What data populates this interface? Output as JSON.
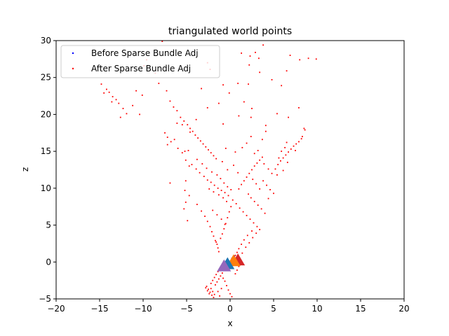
{
  "chart_data": {
    "type": "scatter",
    "title": "triangulated world points",
    "xlabel": "x",
    "ylabel": "z",
    "xlim": [
      -20,
      20
    ],
    "ylim": [
      -5,
      30
    ],
    "xticks": [
      -20,
      -15,
      -10,
      -5,
      0,
      5,
      10,
      15,
      20
    ],
    "yticks": [
      -5,
      0,
      5,
      10,
      15,
      20,
      25,
      30
    ],
    "xtick_labels": [
      "−20",
      "−15",
      "−10",
      "−5",
      "0",
      "5",
      "10",
      "15",
      "20"
    ],
    "ytick_labels": [
      "−5",
      "0",
      "5",
      "10",
      "15",
      "20",
      "25",
      "30"
    ],
    "grid": false,
    "legend": {
      "placement": "top-left",
      "entries": [
        {
          "label": "Before Sparse Bundle Adj",
          "color": "#0000ff"
        },
        {
          "label": "After Sparse Bundle Adj",
          "color": "#ff0000"
        }
      ]
    },
    "series": [
      {
        "name": "Before Sparse Bundle Adj",
        "color": "#0000ff",
        "points": [
          [
            0.2,
            0.5
          ],
          [
            0.5,
            0.8
          ],
          [
            -0.3,
            0.2
          ]
        ]
      },
      {
        "name": "After Sparse Bundle Adj",
        "color": "#ff0000",
        "points": [
          [
            -14.8,
            24.1
          ],
          [
            -14.2,
            23.4
          ],
          [
            -13.9,
            23.0
          ],
          [
            -13.5,
            22.4
          ],
          [
            -13.1,
            22.0
          ],
          [
            -12.8,
            21.5
          ],
          [
            -14.5,
            22.9
          ],
          [
            -13.6,
            21.7
          ],
          [
            -12.3,
            20.8
          ],
          [
            -11.9,
            20.1
          ],
          [
            -10.4,
            20.0
          ],
          [
            -12.6,
            19.6
          ],
          [
            -11.2,
            21.2
          ],
          [
            -10.8,
            23.2
          ],
          [
            -10.1,
            22.6
          ],
          [
            -9.6,
            27.4
          ],
          [
            -9.9,
            26.6
          ],
          [
            -8.6,
            25.6
          ],
          [
            -8.2,
            24.2
          ],
          [
            -7.8,
            29.9
          ],
          [
            -7.3,
            23.2
          ],
          [
            -6.9,
            21.8
          ],
          [
            -6.5,
            21.0
          ],
          [
            -6.1,
            20.5
          ],
          [
            -5.7,
            19.6
          ],
          [
            -5.3,
            19.1
          ],
          [
            -4.9,
            18.6
          ],
          [
            -4.6,
            18.1
          ],
          [
            -4.3,
            17.7
          ],
          [
            -4.0,
            17.2
          ],
          [
            -3.7,
            16.8
          ],
          [
            -3.4,
            16.4
          ],
          [
            -3.1,
            16.0
          ],
          [
            -2.8,
            15.6
          ],
          [
            -2.5,
            15.2
          ],
          [
            -2.2,
            14.8
          ],
          [
            -1.9,
            14.4
          ],
          [
            -1.6,
            14.0
          ],
          [
            -7.5,
            17.5
          ],
          [
            -6.8,
            16.3
          ],
          [
            -6.0,
            15.4
          ],
          [
            -5.5,
            14.8
          ],
          [
            -4.8,
            15.1
          ],
          [
            -7.2,
            16.9
          ],
          [
            -6.4,
            16.6
          ],
          [
            -5.1,
            13.8
          ],
          [
            -4.4,
            13.2
          ],
          [
            -3.9,
            12.6
          ],
          [
            -3.5,
            12.1
          ],
          [
            -3.0,
            11.6
          ],
          [
            -2.6,
            11.1
          ],
          [
            -2.2,
            10.8
          ],
          [
            -1.8,
            10.4
          ],
          [
            -1.4,
            10.0
          ],
          [
            -1.0,
            9.7
          ],
          [
            -0.6,
            9.4
          ],
          [
            -0.2,
            9.0
          ],
          [
            -3.8,
            13.9
          ],
          [
            -3.2,
            13.3
          ],
          [
            -2.7,
            12.7
          ],
          [
            -2.1,
            12.2
          ],
          [
            -1.5,
            11.8
          ],
          [
            -1.1,
            11.3
          ],
          [
            -0.7,
            10.7
          ],
          [
            -0.3,
            10.2
          ],
          [
            0.1,
            9.8
          ],
          [
            -2.4,
            9.9
          ],
          [
            -1.9,
            9.5
          ],
          [
            -1.3,
            9.1
          ],
          [
            -0.8,
            8.7
          ],
          [
            -0.4,
            8.2
          ],
          [
            -5.1,
            11.0
          ],
          [
            -4.7,
            9.0
          ],
          [
            -5.3,
            7.2
          ],
          [
            -4.9,
            5.6
          ],
          [
            -3.8,
            7.8
          ],
          [
            -3.3,
            6.9
          ],
          [
            -2.9,
            6.2
          ],
          [
            -2.6,
            5.5
          ],
          [
            -2.3,
            4.8
          ],
          [
            -2.1,
            4.1
          ],
          [
            -1.9,
            3.5
          ],
          [
            -1.7,
            2.9
          ],
          [
            -1.5,
            2.4
          ],
          [
            -1.4,
            1.9
          ],
          [
            -1.3,
            1.4
          ],
          [
            -1.6,
            2.7
          ],
          [
            -1.1,
            3.2
          ],
          [
            -0.9,
            3.8
          ],
          [
            -0.7,
            4.5
          ],
          [
            -0.5,
            5.2
          ],
          [
            -0.3,
            6.0
          ],
          [
            -0.1,
            6.8
          ],
          [
            0.1,
            7.5
          ],
          [
            -2.0,
            7.0
          ],
          [
            -1.5,
            6.4
          ],
          [
            -1.0,
            5.8
          ],
          [
            -0.6,
            5.1
          ],
          [
            0.3,
            8.4
          ],
          [
            0.7,
            7.9
          ],
          [
            1.1,
            7.3
          ],
          [
            1.5,
            6.8
          ],
          [
            1.9,
            6.3
          ],
          [
            2.3,
            5.8
          ],
          [
            2.7,
            5.3
          ],
          [
            3.1,
            4.8
          ],
          [
            2.5,
            4.2
          ],
          [
            2.0,
            3.6
          ],
          [
            1.6,
            3.0
          ],
          [
            1.3,
            2.4
          ],
          [
            1.0,
            1.8
          ],
          [
            0.8,
            1.3
          ],
          [
            0.6,
            0.9
          ],
          [
            1.8,
            2.0
          ],
          [
            2.2,
            2.6
          ],
          [
            1.4,
            1.2
          ],
          [
            1.1,
            0.5
          ],
          [
            0.9,
            0.1
          ],
          [
            2.6,
            3.3
          ],
          [
            3.0,
            3.9
          ],
          [
            3.4,
            4.4
          ],
          [
            1.0,
            9.9
          ],
          [
            1.3,
            10.5
          ],
          [
            1.6,
            11.0
          ],
          [
            1.9,
            11.5
          ],
          [
            2.2,
            12.0
          ],
          [
            2.5,
            12.5
          ],
          [
            2.8,
            13.0
          ],
          [
            3.1,
            13.4
          ],
          [
            3.4,
            13.8
          ],
          [
            3.7,
            14.2
          ],
          [
            2.1,
            9.2
          ],
          [
            2.4,
            8.7
          ],
          [
            2.8,
            8.2
          ],
          [
            3.2,
            7.7
          ],
          [
            3.6,
            7.2
          ],
          [
            4.0,
            6.6
          ],
          [
            3.4,
            9.9
          ],
          [
            3.0,
            10.6
          ],
          [
            2.6,
            11.2
          ],
          [
            3.8,
            11.0
          ],
          [
            4.2,
            10.4
          ],
          [
            4.6,
            9.8
          ],
          [
            5.0,
            9.3
          ],
          [
            4.4,
            8.6
          ],
          [
            4.8,
            12.0
          ],
          [
            4.4,
            12.6
          ],
          [
            3.9,
            13.3
          ],
          [
            5.2,
            12.6
          ],
          [
            5.5,
            13.2
          ],
          [
            5.8,
            13.7
          ],
          [
            6.1,
            14.1
          ],
          [
            6.4,
            14.5
          ],
          [
            6.7,
            14.9
          ],
          [
            7.0,
            15.3
          ],
          [
            7.3,
            15.7
          ],
          [
            7.6,
            16.0
          ],
          [
            7.9,
            16.3
          ],
          [
            8.2,
            16.7
          ],
          [
            5.9,
            15.0
          ],
          [
            6.3,
            15.5
          ],
          [
            6.6,
            13.5
          ],
          [
            5.4,
            11.8
          ],
          [
            6.1,
            12.4
          ],
          [
            7.5,
            15.1
          ],
          [
            8.6,
            17.9
          ],
          [
            8.3,
            17.0
          ],
          [
            6.5,
            16.2
          ],
          [
            5.6,
            14.1
          ],
          [
            4.1,
            17.7
          ],
          [
            3.7,
            16.6
          ],
          [
            2.4,
            17.0
          ],
          [
            1.9,
            16.1
          ],
          [
            1.4,
            15.5
          ],
          [
            0.6,
            14.9
          ],
          [
            -0.5,
            15.4
          ],
          [
            -0.9,
            13.6
          ],
          [
            0.4,
            13.1
          ],
          [
            -0.3,
            12.5
          ],
          [
            0.9,
            12.1
          ],
          [
            3.2,
            15.1
          ],
          [
            2.8,
            14.7
          ],
          [
            -2.7,
            -3.3
          ],
          [
            -2.5,
            -3.7
          ],
          [
            -2.3,
            -4.1
          ],
          [
            -2.1,
            -4.5
          ],
          [
            -1.9,
            -4.8
          ],
          [
            -1.7,
            -3.1
          ],
          [
            -1.5,
            -2.7
          ],
          [
            -1.3,
            -2.3
          ],
          [
            -1.1,
            -1.9
          ],
          [
            -0.9,
            -1.5
          ],
          [
            -2.2,
            -2.9
          ],
          [
            -2.0,
            -2.5
          ],
          [
            -1.8,
            -2.1
          ],
          [
            -1.6,
            -1.7
          ],
          [
            -1.4,
            -1.3
          ],
          [
            -1.2,
            -0.9
          ],
          [
            -2.4,
            -4.3
          ],
          [
            -2.6,
            -3.9
          ],
          [
            -2.8,
            -3.5
          ],
          [
            -2.2,
            -3.6
          ],
          [
            -2.0,
            -4.0
          ],
          [
            -1.8,
            -4.4
          ],
          [
            -0.8,
            -2.2
          ],
          [
            -0.6,
            -2.6
          ],
          [
            -0.4,
            -3.2
          ],
          [
            -0.2,
            -3.8
          ],
          [
            0.0,
            -4.3
          ],
          [
            0.2,
            -4.7
          ],
          [
            0.6,
            -1.6
          ],
          [
            0.8,
            -1.1
          ],
          [
            1.0,
            -0.6
          ],
          [
            -1.0,
            -3.6
          ],
          [
            -1.2,
            -4.6
          ],
          [
            -1.4,
            -4.0
          ],
          [
            3.8,
            29.4
          ],
          [
            3.3,
            27.6
          ],
          [
            2.9,
            28.4
          ],
          [
            2.3,
            27.9
          ],
          [
            1.3,
            28.3
          ],
          [
            6.5,
            25.9
          ],
          [
            6.9,
            28.0
          ],
          [
            8.0,
            27.4
          ],
          [
            9.0,
            27.6
          ],
          [
            9.9,
            27.5
          ],
          [
            2.2,
            26.7
          ],
          [
            3.4,
            25.7
          ],
          [
            2.1,
            24.1
          ],
          [
            4.8,
            24.7
          ],
          [
            5.9,
            23.9
          ],
          [
            -2.6,
            27.0
          ],
          [
            -2.3,
            26.1
          ],
          [
            -3.3,
            23.5
          ],
          [
            0.9,
            24.2
          ],
          [
            -0.8,
            24.0
          ],
          [
            -0.1,
            22.9
          ],
          [
            1.6,
            21.7
          ],
          [
            2.5,
            20.8
          ],
          [
            5.4,
            20.1
          ],
          [
            4.1,
            18.5
          ],
          [
            6.7,
            19.6
          ],
          [
            8.5,
            18.1
          ],
          [
            7.9,
            20.9
          ],
          [
            -2.6,
            20.9
          ],
          [
            -1.3,
            21.5
          ],
          [
            -6.1,
            18.8
          ],
          [
            -5.5,
            18.6
          ],
          [
            -4.6,
            17.6
          ],
          [
            -3.9,
            19.3
          ],
          [
            -7.2,
            15.9
          ],
          [
            -5.2,
            15.0
          ],
          [
            -4.7,
            13.0
          ],
          [
            -6.9,
            10.7
          ],
          [
            -5.2,
            9.7
          ],
          [
            -5.1,
            8.1
          ],
          [
            -0.8,
            18.7
          ],
          [
            1.0,
            19.8
          ],
          [
            2.4,
            19.6
          ]
        ]
      }
    ],
    "markers": [
      {
        "shape": "triangle",
        "color": "#d62728",
        "x": 0.9,
        "y": 0.2
      },
      {
        "shape": "triangle",
        "color": "#ff7f0e",
        "x": 0.4,
        "y": 0.1
      },
      {
        "shape": "triangle",
        "color": "#1f77b4",
        "x": -0.3,
        "y": -0.3
      },
      {
        "shape": "triangle",
        "color": "#9467bd",
        "x": -0.7,
        "y": -0.6
      }
    ]
  }
}
